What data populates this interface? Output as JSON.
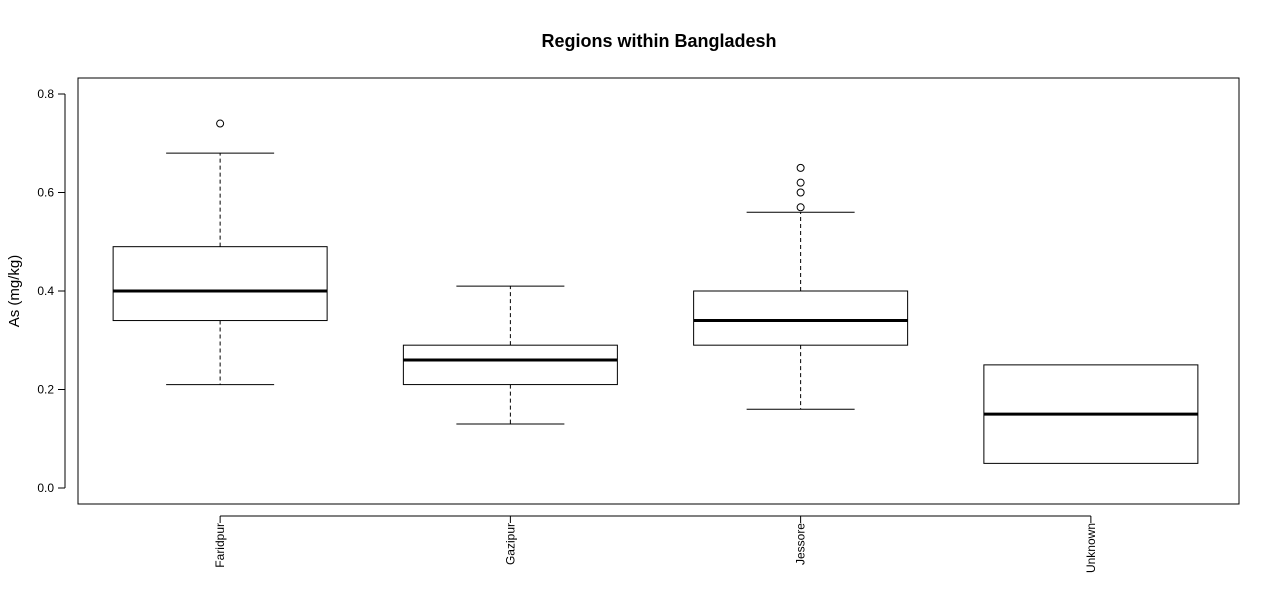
{
  "chart_data": {
    "type": "boxplot",
    "title": "Regions within Bangladesh",
    "xlabel": "",
    "ylabel": "As (mg/kg)",
    "ylim": [
      -0.03,
      0.83
    ],
    "yticks": [
      0.0,
      0.2,
      0.4,
      0.6,
      0.8
    ],
    "ytick_labels": [
      "0.0",
      "0.2",
      "0.4",
      "0.6",
      "0.8"
    ],
    "grid": false,
    "legend": "none",
    "categories": [
      "Faridpur",
      "Gazipur",
      "Jessore",
      "Unknown"
    ],
    "boxes": [
      {
        "category": "Faridpur",
        "whisker_low": 0.21,
        "q1": 0.34,
        "median": 0.4,
        "q3": 0.49,
        "whisker_high": 0.68,
        "outliers": [
          0.74
        ]
      },
      {
        "category": "Gazipur",
        "whisker_low": 0.13,
        "q1": 0.21,
        "median": 0.26,
        "q3": 0.29,
        "whisker_high": 0.41,
        "outliers": []
      },
      {
        "category": "Jessore",
        "whisker_low": 0.16,
        "q1": 0.29,
        "median": 0.34,
        "q3": 0.4,
        "whisker_high": 0.56,
        "outliers": [
          0.57,
          0.6,
          0.62,
          0.65
        ]
      },
      {
        "category": "Unknown",
        "whisker_low": 0.05,
        "q1": 0.05,
        "median": 0.15,
        "q3": 0.25,
        "whisker_high": 0.25,
        "outliers": []
      }
    ],
    "colors": {
      "box_fill": "#ffffff",
      "line": "#000000"
    }
  }
}
